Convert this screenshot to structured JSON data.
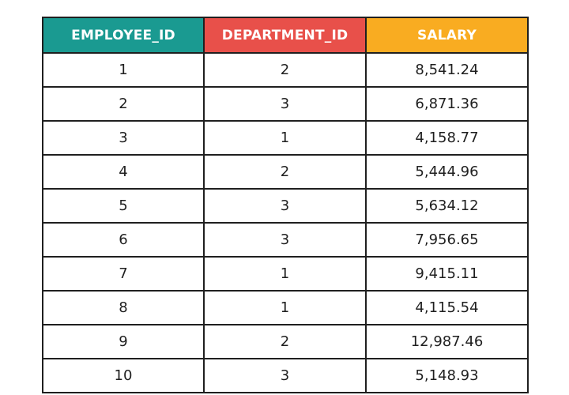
{
  "table": {
    "headers": {
      "employee_id": "EMPLOYEE_ID",
      "department_id": "DEPARTMENT_ID",
      "salary": "SALARY"
    },
    "header_colors": {
      "employee_id": "#1a9a91",
      "department_id": "#e8504a",
      "salary": "#f9ac21"
    },
    "rows": [
      {
        "employee_id": "1",
        "department_id": "2",
        "salary": "8,541.24"
      },
      {
        "employee_id": "2",
        "department_id": "3",
        "salary": "6,871.36"
      },
      {
        "employee_id": "3",
        "department_id": "1",
        "salary": "4,158.77"
      },
      {
        "employee_id": "4",
        "department_id": "2",
        "salary": "5,444.96"
      },
      {
        "employee_id": "5",
        "department_id": "3",
        "salary": "5,634.12"
      },
      {
        "employee_id": "6",
        "department_id": "3",
        "salary": "7,956.65"
      },
      {
        "employee_id": "7",
        "department_id": "1",
        "salary": "9,415.11"
      },
      {
        "employee_id": "8",
        "department_id": "1",
        "salary": "4,115.54"
      },
      {
        "employee_id": "9",
        "department_id": "2",
        "salary": "12,987.46"
      },
      {
        "employee_id": "10",
        "department_id": "3",
        "salary": "5,148.93"
      }
    ]
  }
}
